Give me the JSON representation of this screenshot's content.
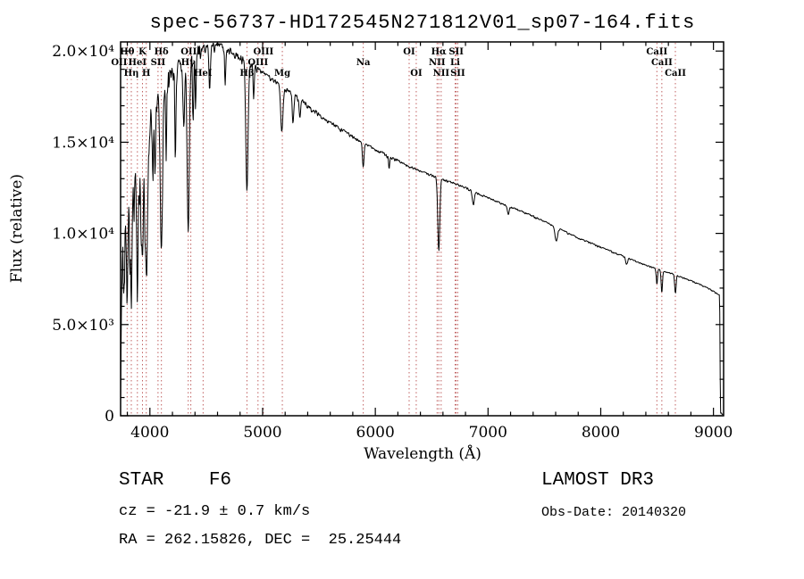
{
  "chart_data": {
    "type": "line",
    "title": "spec-56737-HD172545N271812V01_sp07-164.fits",
    "xlabel": "Wavelength (Å)",
    "ylabel": "Flux (relative)",
    "xlim": [
      3740,
      9090
    ],
    "ylim": [
      0,
      20500
    ],
    "x_ticks": [
      4000,
      5000,
      6000,
      7000,
      8000,
      9000
    ],
    "y_ticks": [
      {
        "v": 0,
        "label": "0"
      },
      {
        "v": 5000,
        "label": "5.0×10³"
      },
      {
        "v": 10000,
        "label": "1.0×10⁴"
      },
      {
        "v": 15000,
        "label": "1.5×10⁴"
      },
      {
        "v": 20000,
        "label": "2.0×10⁴"
      }
    ],
    "x_minor_step": 200,
    "y_minor_step": 1000,
    "grid": false,
    "continuum": [
      [
        3740,
        100
      ],
      [
        3748,
        12000
      ],
      [
        3760,
        13000
      ],
      [
        3780,
        14000
      ],
      [
        3800,
        13800
      ],
      [
        3830,
        14200
      ],
      [
        3860,
        14500
      ],
      [
        3900,
        14800
      ],
      [
        3940,
        15200
      ],
      [
        3970,
        15000
      ],
      [
        4000,
        16200
      ],
      [
        4040,
        17000
      ],
      [
        4080,
        17400
      ],
      [
        4120,
        17800
      ],
      [
        4160,
        18300
      ],
      [
        4200,
        18800
      ],
      [
        4260,
        19300
      ],
      [
        4320,
        19600
      ],
      [
        4380,
        19900
      ],
      [
        4440,
        20100
      ],
      [
        4500,
        20200
      ],
      [
        4560,
        20300
      ],
      [
        4620,
        20300
      ],
      [
        4680,
        20100
      ],
      [
        4740,
        19900
      ],
      [
        4800,
        19700
      ],
      [
        4860,
        19400
      ],
      [
        4920,
        19200
      ],
      [
        4980,
        18900
      ],
      [
        5050,
        18600
      ],
      [
        5120,
        18300
      ],
      [
        5200,
        17900
      ],
      [
        5280,
        17600
      ],
      [
        5360,
        17200
      ],
      [
        5440,
        16800
      ],
      [
        5520,
        16400
      ],
      [
        5600,
        16100
      ],
      [
        5700,
        15700
      ],
      [
        5800,
        15300
      ],
      [
        5900,
        14900
      ],
      [
        6000,
        14600
      ],
      [
        6100,
        14300
      ],
      [
        6200,
        14000
      ],
      [
        6300,
        13700
      ],
      [
        6400,
        13400
      ],
      [
        6500,
        13200
      ],
      [
        6600,
        12950
      ],
      [
        6700,
        12750
      ],
      [
        6800,
        12500
      ],
      [
        6900,
        12200
      ],
      [
        7000,
        11950
      ],
      [
        7100,
        11700
      ],
      [
        7200,
        11450
      ],
      [
        7300,
        11200
      ],
      [
        7400,
        10950
      ],
      [
        7500,
        10650
      ],
      [
        7600,
        10350
      ],
      [
        7700,
        10050
      ],
      [
        7800,
        9750
      ],
      [
        7900,
        9500
      ],
      [
        8000,
        9250
      ],
      [
        8100,
        9000
      ],
      [
        8200,
        8750
      ],
      [
        8300,
        8500
      ],
      [
        8400,
        8250
      ],
      [
        8500,
        8050
      ],
      [
        8600,
        7850
      ],
      [
        8700,
        7650
      ],
      [
        8800,
        7400
      ],
      [
        8900,
        7150
      ],
      [
        8980,
        6900
      ],
      [
        9030,
        6700
      ],
      [
        9055,
        6600
      ],
      [
        9062,
        150
      ],
      [
        9086,
        80
      ]
    ],
    "absorption_lines": [
      [
        3750,
        0.5,
        7
      ],
      [
        3771,
        0.5,
        7
      ],
      [
        3798,
        0.52,
        8
      ],
      [
        3820,
        0.3,
        5
      ],
      [
        3835,
        0.52,
        8
      ],
      [
        3860,
        0.3,
        5
      ],
      [
        3889,
        0.52,
        9
      ],
      [
        3920,
        0.25,
        5
      ],
      [
        3934,
        0.48,
        8
      ],
      [
        3969,
        0.55,
        10
      ],
      [
        4026,
        0.2,
        5
      ],
      [
        4045,
        0.25,
        5
      ],
      [
        4102,
        0.5,
        10
      ],
      [
        4144,
        0.2,
        5
      ],
      [
        4226,
        0.25,
        5
      ],
      [
        4300,
        0.18,
        8
      ],
      [
        4340,
        0.47,
        10
      ],
      [
        4383,
        0.2,
        5
      ],
      [
        4405,
        0.15,
        5
      ],
      [
        4530,
        0.12,
        6
      ],
      [
        4668,
        0.1,
        5
      ],
      [
        4861,
        0.37,
        10
      ],
      [
        4920,
        0.1,
        5
      ],
      [
        5170,
        0.14,
        10
      ],
      [
        5270,
        0.09,
        7
      ],
      [
        5330,
        0.06,
        6
      ],
      [
        5893,
        0.09,
        7
      ],
      [
        6122,
        0.05,
        5
      ],
      [
        6563,
        0.31,
        9
      ],
      [
        6870,
        0.06,
        8
      ],
      [
        7180,
        0.04,
        8
      ],
      [
        7605,
        0.07,
        12
      ],
      [
        8230,
        0.04,
        8
      ],
      [
        8498,
        0.11,
        5
      ],
      [
        8542,
        0.15,
        6
      ],
      [
        8662,
        0.13,
        6
      ]
    ],
    "noise_regions": [
      [
        3740,
        4000,
        3200
      ],
      [
        4000,
        4200,
        1600
      ],
      [
        4200,
        4450,
        900
      ],
      [
        4450,
        4950,
        550
      ],
      [
        4950,
        5500,
        330
      ],
      [
        5500,
        6200,
        220
      ],
      [
        6200,
        7000,
        150
      ],
      [
        7000,
        8000,
        120
      ],
      [
        8000,
        9090,
        100
      ]
    ],
    "spectral_markers": [
      {
        "wavelength": 3727,
        "label": "OII",
        "row": 2
      },
      {
        "wavelength": 3798,
        "label": "Hθ",
        "row": 1
      },
      {
        "wavelength": 3835,
        "label": "Hη",
        "row": 3
      },
      {
        "wavelength": 3889,
        "label": "HeI",
        "row": 2
      },
      {
        "wavelength": 3934,
        "label": "K",
        "row": 1
      },
      {
        "wavelength": 3968,
        "label": "H",
        "row": 3
      },
      {
        "wavelength": 4072,
        "label": "SII",
        "row": 2
      },
      {
        "wavelength": 4102,
        "label": "Hδ",
        "row": 1
      },
      {
        "wavelength": 4340,
        "label": "Hγ",
        "row": 2
      },
      {
        "wavelength": 4363,
        "label": "OIII",
        "row": 1
      },
      {
        "wavelength": 4472,
        "label": "HeI",
        "row": 3
      },
      {
        "wavelength": 4861,
        "label": "Hβ",
        "row": 3
      },
      {
        "wavelength": 4959,
        "label": "OIII",
        "row": 2
      },
      {
        "wavelength": 5007,
        "label": "OIII",
        "row": 1
      },
      {
        "wavelength": 5175,
        "label": "Mg",
        "row": 3
      },
      {
        "wavelength": 5893,
        "label": "Na",
        "row": 2
      },
      {
        "wavelength": 6300,
        "label": "OI",
        "row": 1
      },
      {
        "wavelength": 6363,
        "label": "OI",
        "row": 3
      },
      {
        "wavelength": 6548,
        "label": "NII",
        "row": 2
      },
      {
        "wavelength": 6563,
        "label": "Hα",
        "row": 1
      },
      {
        "wavelength": 6584,
        "label": "NII",
        "row": 3
      },
      {
        "wavelength": 6708,
        "label": "Li",
        "row": 2
      },
      {
        "wavelength": 6717,
        "label": "SII",
        "row": 1
      },
      {
        "wavelength": 6731,
        "label": "SII",
        "row": 3
      },
      {
        "wavelength": 8498,
        "label": "CaII",
        "row": 1
      },
      {
        "wavelength": 8542,
        "label": "CaII",
        "row": 2
      },
      {
        "wavelength": 8662,
        "label": "CaII",
        "row": 3
      }
    ]
  },
  "footer": {
    "class_label": "STAR    F6",
    "survey": "LAMOST DR3",
    "cz": "cz = -21.9 ± 0.7 km/s",
    "obs_date": "Obs-Date: 20140320",
    "ra_dec": "RA = 262.15826, DEC =  25.25444"
  },
  "colors": {
    "spectrum": "#000000",
    "axis": "#000000",
    "marker_line": "#c06060",
    "marker_label": "#8b1a1a",
    "background": "#ffffff"
  }
}
